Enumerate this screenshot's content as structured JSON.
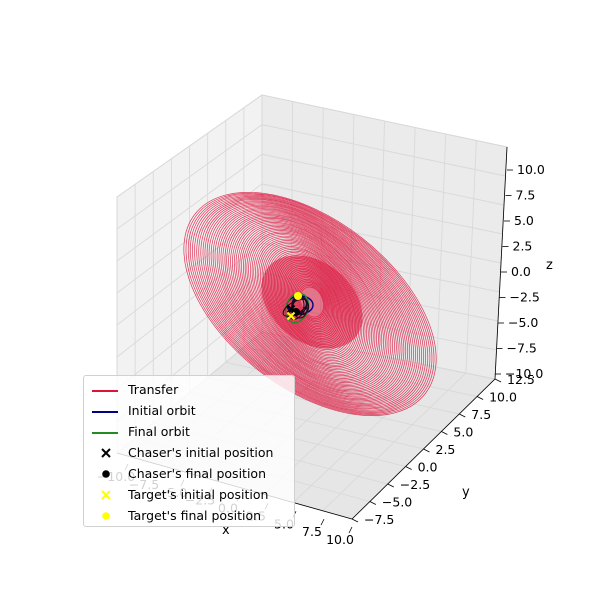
{
  "chart_data": {
    "type": "line",
    "projection": "3d",
    "title": "",
    "xlabel": "x",
    "ylabel": "y",
    "zlabel": "z",
    "xlim": [
      -10,
      10
    ],
    "ylim": [
      -7.5,
      12.5
    ],
    "zlim": [
      -10,
      10
    ],
    "x_ticks": [
      "−10.0",
      "−7.5",
      "−5.0",
      "−2.5",
      "0.0",
      "2.5",
      "5.0",
      "7.5",
      "10.0"
    ],
    "y_ticks": [
      "−7.5",
      "−5.0",
      "−2.5",
      "0.0",
      "2.5",
      "5.0",
      "7.5",
      "10.0",
      "12.5"
    ],
    "z_ticks": [
      "−10.0",
      "−7.5",
      "−5.0",
      "−2.5",
      "0.0",
      "2.5",
      "5.0",
      "7.5",
      "10.0"
    ],
    "grid": true,
    "legend_position": "lower-left",
    "series": [
      {
        "name": "Transfer",
        "kind": "line",
        "color": "#dc143c"
      },
      {
        "name": "Initial orbit",
        "kind": "line",
        "color": "#00008b"
      },
      {
        "name": "Final orbit",
        "kind": "line",
        "color": "#228b22"
      }
    ],
    "points": [
      {
        "name": "Chaser's initial position",
        "marker": "x",
        "color": "#000000"
      },
      {
        "name": "Chaser's final position",
        "marker": "o",
        "color": "#000000"
      },
      {
        "name": "Target's initial position",
        "marker": "x",
        "color": "#ffff00"
      },
      {
        "name": "Target's final position",
        "marker": "o",
        "color": "#ffff00"
      }
    ]
  }
}
